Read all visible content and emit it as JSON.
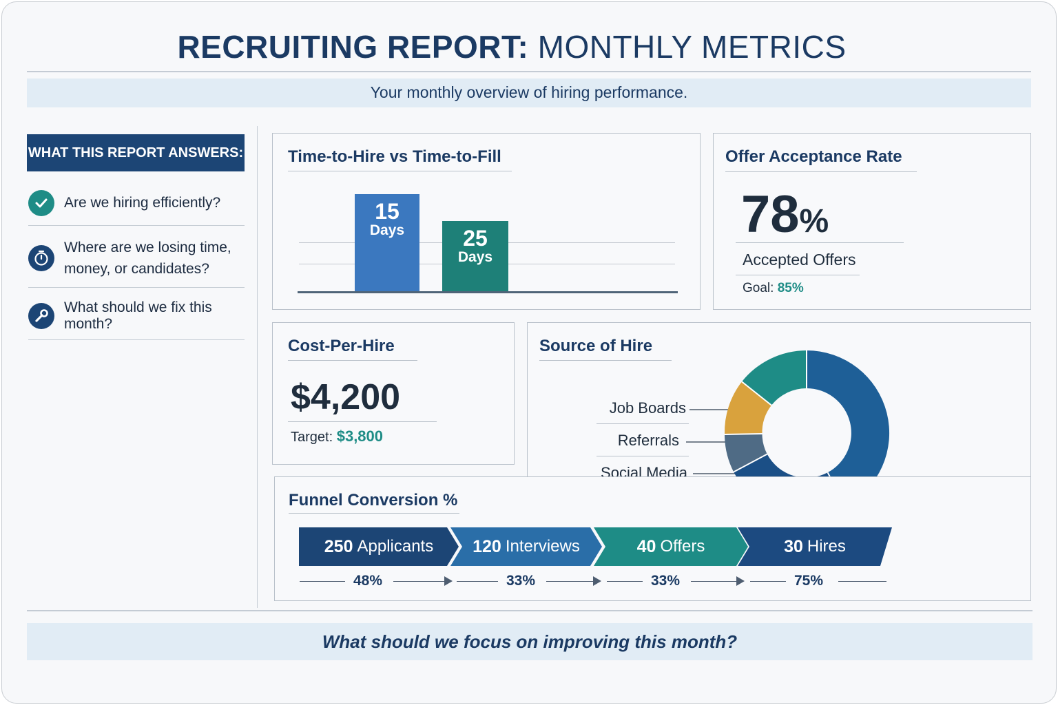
{
  "header": {
    "title_bold": "RECRUITING REPORT:",
    "title_rest": "MONTHLY METRICS",
    "subtitle": "Your monthly overview of hiring performance."
  },
  "sidebar": {
    "heading": "WHAT THIS REPORT ANSWERS:",
    "questions": [
      {
        "icon": "check-circle-icon",
        "text": "Are we hiring efficiently?",
        "color": "#1e8c86"
      },
      {
        "icon": "stopwatch-icon",
        "text": "Where are we losing time, money, or candidates?",
        "color": "#1c4575"
      },
      {
        "icon": "wrench-icon",
        "text": "What should we fix this month?",
        "color": "#1c4575"
      }
    ]
  },
  "time_panel": {
    "title": "Time-to-Hire vs Time-to-Fill",
    "bars": [
      {
        "value": "15",
        "unit": "Days",
        "color": "#3b78bf"
      },
      {
        "value": "25",
        "unit": "Days",
        "color": "#1e8078"
      }
    ]
  },
  "offer_panel": {
    "title": "Offer Acceptance Rate",
    "value": "78",
    "suffix": "%",
    "label": "Accepted Offers",
    "goal_label": "Goal:",
    "goal_value": "85%"
  },
  "cost_panel": {
    "title": "Cost-Per-Hire",
    "value": "$4,200",
    "target_label": "Target:",
    "target_value": "$3,800"
  },
  "source_panel": {
    "title": "Source of Hire",
    "legend": [
      "Job Boards",
      "Referrals",
      "Social Media"
    ],
    "colors": {
      "job_boards": "#d9a23d",
      "referrals": "#4f6b85",
      "social_media": "#1e5f97",
      "other": "#1e8c86",
      "main": "#1e5f97"
    }
  },
  "funnel_panel": {
    "title": "Funnel Conversion %",
    "stages": [
      {
        "count": "250",
        "label": "Applicants",
        "color": "#1c4575"
      },
      {
        "count": "120",
        "label": "Interviews",
        "color": "#2a6ea8"
      },
      {
        "count": "40",
        "label": "Offers",
        "color": "#1e8c86"
      },
      {
        "count": "30",
        "label": "Hires",
        "color": "#1c4a80"
      }
    ],
    "rates": [
      "48%",
      "33%",
      "33%",
      "75%"
    ]
  },
  "footer": {
    "question": "What should we focus on improving this month?"
  }
}
